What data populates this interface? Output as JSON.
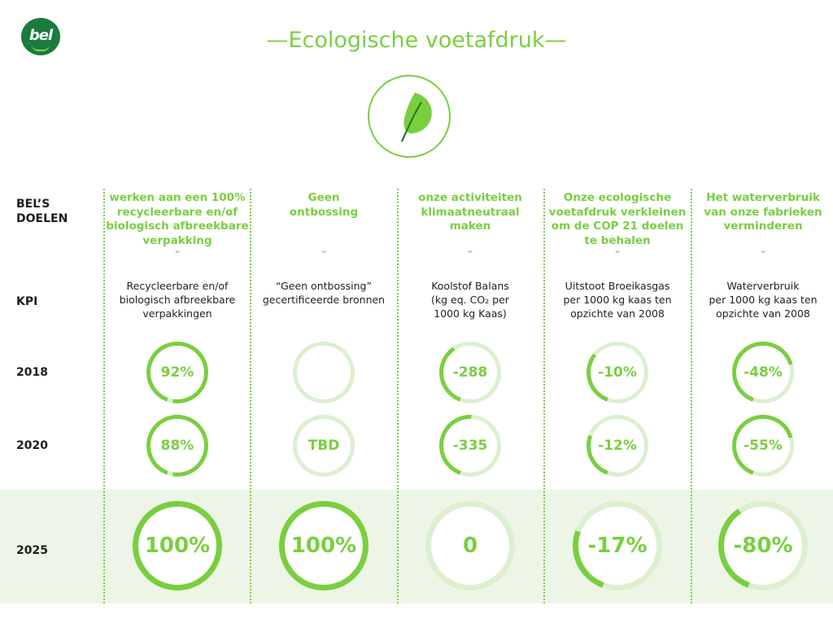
{
  "logo": {
    "text": "bel"
  },
  "title": "—Ecologische voetafdruk—",
  "row_labels": {
    "goals_line1": "BEL’S",
    "goals_line2": "DOELEN",
    "kpi": "KPI",
    "y2018": "2018",
    "y2020": "2020",
    "y2025": "2025"
  },
  "chevron": "⌄",
  "columns": [
    {
      "goal": [
        "werken aan een 100%",
        "recycleerbare en/of",
        "biologisch afbreekbare",
        "verpakking"
      ],
      "kpi": [
        "Recycleerbare en/of",
        "biologisch afbreekbare",
        "verpakkingen"
      ],
      "values": {
        "y2018": "92%",
        "y2020": "88%",
        "y2025": "100%"
      }
    },
    {
      "goal": [
        "Geen",
        "ontbossing"
      ],
      "kpi": [
        "“Geen ontbossing”",
        "gecertificeerde bronnen"
      ],
      "values": {
        "y2018": "",
        "y2020": "TBD",
        "y2025": "100%"
      }
    },
    {
      "goal": [
        "onze activiteiten",
        "klimaatneutraal",
        "maken"
      ],
      "kpi": [
        "Koolstof Balans",
        "(kg eq. CO₂ per",
        "1000 kg Kaas)"
      ],
      "values": {
        "y2018": "-288",
        "y2020": "-335",
        "y2025": "0"
      }
    },
    {
      "goal": [
        "Onze ecologische",
        "voetafdruk verkleinen",
        "om de COP 21 doelen",
        "te behalen"
      ],
      "kpi": [
        "Uitstoot Broeikasgas",
        "per 1000 kg kaas ten",
        "opzichte van 2008"
      ],
      "values": {
        "y2018": "-10%",
        "y2020": "-12%",
        "y2025": "-17%"
      }
    },
    {
      "goal": [
        "Het waterverbruik",
        "van onze fabrieken",
        "verminderen"
      ],
      "kpi": [
        "Waterverbruik",
        "per 1000 kg kaas ten",
        "opzichte van 2008"
      ],
      "values": {
        "y2018": "-48%",
        "y2020": "-55%",
        "y2025": "-80%"
      }
    }
  ],
  "ring_fill": {
    "y2018": [
      0.97,
      0.0,
      0.35,
      0.3,
      0.65
    ],
    "y2020": [
      0.97,
      0.0,
      0.45,
      0.25,
      0.65
    ],
    "y2025": [
      1.0,
      1.0,
      0.0,
      0.25,
      0.35
    ]
  },
  "colors": {
    "accent": "#79cf3f",
    "track": "#dcefcf",
    "brand_green": "#1b7a3d",
    "band": "#edf6e6",
    "leaf_dark": "#2f7a1f"
  }
}
